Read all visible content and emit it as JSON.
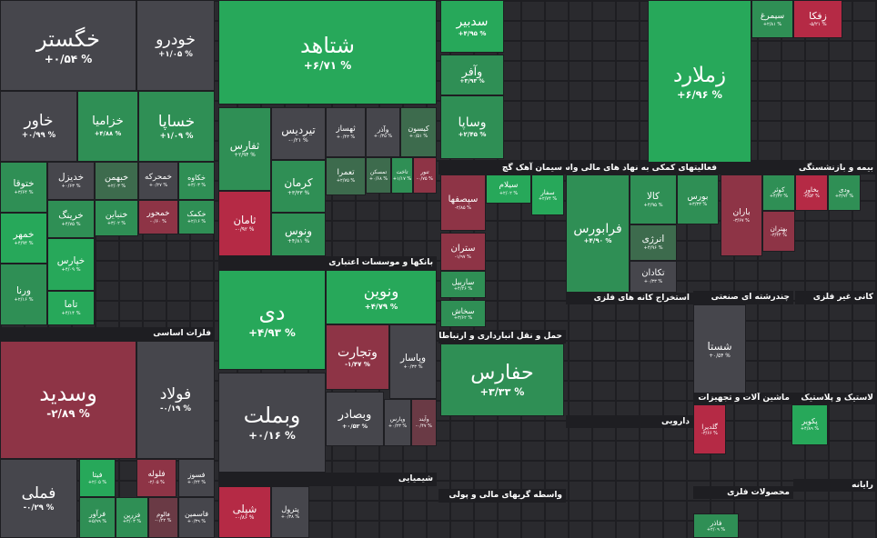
{
  "tiles": [
    {
      "name": "خگستر",
      "change": "+۰/۵۴ %"
    },
    {
      "name": "خودرو",
      "change": "+۱/۰۵ %"
    },
    {
      "name": "خاور",
      "change": "+۰/۹۹ %"
    },
    {
      "name": "خزامیا",
      "change": "+۴/۸۸ %"
    },
    {
      "name": "خساپا",
      "change": "+۱/۰۹ %"
    },
    {
      "name": "ختوقا",
      "change": "+۳/۶۴ %"
    },
    {
      "name": "خمهر",
      "change": "+۴/۹۴ %"
    },
    {
      "name": "ورنا",
      "change": "+۲/۱۶ %"
    },
    {
      "name": "خدیزل",
      "change": "+۰/۶۳ %"
    },
    {
      "name": "خبهمن",
      "change": "+۲/۰۳ %"
    },
    {
      "name": "خمحرکه",
      "change": "+۰/۲۷ %"
    },
    {
      "name": "خکاوه",
      "change": "+۳/۰۳ %"
    },
    {
      "name": "خرینگ",
      "change": "+۴/۷۵ %"
    },
    {
      "name": "خنباین",
      "change": "+۳/۰۲ %"
    },
    {
      "name": "خمحور",
      "change": "-۰/۶۰ %"
    },
    {
      "name": "خکمک",
      "change": "+۲/۱۶ %"
    },
    {
      "name": "خپارس",
      "change": "+۴/۰۹ %"
    },
    {
      "name": "تاما",
      "change": "+۴/۱۴ %"
    },
    {
      "name": "وسدید",
      "change": "-۲/۸۹ %"
    },
    {
      "name": "فولاد",
      "change": "-۰/۱۹ %"
    },
    {
      "name": "فملی",
      "change": "-۰/۲۹ %"
    },
    {
      "name": "فیتا",
      "change": "+۲/۰۵ %"
    },
    {
      "name": "فلوله",
      "change": "-۲/۰۵ %"
    },
    {
      "name": "فسوز",
      "change": "+۰/۲۴ %"
    },
    {
      "name": "فزرین",
      "change": "+۳/۰۳ %"
    },
    {
      "name": "فاسمین",
      "change": "+۰/۳۹ %"
    },
    {
      "name": "فالوم",
      "change": "-۰/۲۲ %"
    },
    {
      "name": "فرآور",
      "change": "+۵/۹۹ %"
    },
    {
      "name": "شتاهد",
      "change": "+۶/۷۱ %"
    },
    {
      "name": "ثفارس",
      "change": "+۲/۹۴ %"
    },
    {
      "name": "ثامان",
      "change": "-۰/۹۲ %"
    },
    {
      "name": "تیردیس",
      "change": "-۰/۲۱ %"
    },
    {
      "name": "ثهساز",
      "change": "+۰/۴۳ %"
    },
    {
      "name": "وآذر",
      "change": "+۰/۳۵ %"
    },
    {
      "name": "کیسون",
      "change": "+۰/۵۱ %"
    },
    {
      "name": "کرمان",
      "change": "+۳/۳۳ %"
    },
    {
      "name": "ونوس",
      "change": "+۴/۸۱ %"
    },
    {
      "name": "تعمرا",
      "change": "+۲/۷۵ %"
    },
    {
      "name": "تمسکن",
      "change": "+۰/۶۸ %"
    },
    {
      "name": "تاخت",
      "change": "+۱/۱۷ %"
    },
    {
      "name": "تنور",
      "change": "-۰/۷۵ %"
    },
    {
      "name": "دی",
      "change": "+۴/۹۳ %"
    },
    {
      "name": "ونوین",
      "change": "+۴/۷۹ %"
    },
    {
      "name": "وتجارت",
      "change": "-۱/۴۷ %"
    },
    {
      "name": "وپاسار",
      "change": "+۰/۳۳ %"
    },
    {
      "name": "وبملت",
      "change": "+۰/۱۶ %"
    },
    {
      "name": "وبصادر",
      "change": "+۰/۵۲ %"
    },
    {
      "name": "وپارس",
      "change": "+۰/۲۳ %"
    },
    {
      "name": "وآیند",
      "change": "-۰/۴۷ %"
    },
    {
      "name": "شپلی",
      "change": "-۰/۸۶ %"
    },
    {
      "name": "پترول",
      "change": "+۰/۳۸ %"
    },
    {
      "name": "سدبیر",
      "change": "+۴/۹۵ %"
    },
    {
      "name": "وآفر",
      "change": "+۳/۹۳ %"
    },
    {
      "name": "وساپا",
      "change": "+۲/۴۵ %"
    },
    {
      "name": "حفارس",
      "change": "+۳/۳۳ %"
    },
    {
      "name": "سپصفها",
      "change": "-۲/۸۵ %"
    },
    {
      "name": "سیلام",
      "change": "+۲/۰۲ %"
    },
    {
      "name": "سفار",
      "change": "+۲/۷۴ %"
    },
    {
      "name": "ستران",
      "change": "-۱/۹۷ %"
    },
    {
      "name": "ساربیل",
      "change": "+۴/۲۶ %"
    },
    {
      "name": "سخاش",
      "change": "+۳/۶۲ %"
    },
    {
      "name": "زملارد",
      "change": "+۶/۹۶ %"
    },
    {
      "name": "فرابورس",
      "change": "+۴/۹۰ %"
    },
    {
      "name": "کالا",
      "change": "+۴/۹۵ %"
    },
    {
      "name": "بورس",
      "change": "+۳/۳۳ %"
    },
    {
      "name": "انرژی",
      "change": "+۴/۹۶ %"
    },
    {
      "name": "تکادان",
      "change": "+۰/۳۳ %"
    },
    {
      "name": "شستا",
      "change": "+۰/۵۴ %"
    },
    {
      "name": "باران",
      "change": "-۳/۶۷ %"
    },
    {
      "name": "کوثر",
      "change": "+۴/۳۲ %"
    },
    {
      "name": "بخاور",
      "change": "-۳/۵۴ %"
    },
    {
      "name": "ودی",
      "change": "+۳/۹۴ %"
    },
    {
      "name": "بهتران",
      "change": "-۳/۴۴ %"
    },
    {
      "name": "سیمرغ",
      "change": "+۲/۸۱ %"
    },
    {
      "name": "زفکا",
      "change": "-۵/۲۱ %"
    },
    {
      "name": "گلدیرا",
      "change": "-۳/۶۶ %"
    },
    {
      "name": "پکویر",
      "change": "+۴/۸۹ %"
    },
    {
      "name": "فاذر",
      "change": "+۲/۰۹ %"
    }
  ],
  "sections": [
    "فلزات اساسی",
    "بانکها و موسسات اعتباری",
    "شیمیایی",
    "سیمان آهک گچ",
    "حمل و نقل انبارداری و ارتباطات",
    "واسطه گریهای مالی و پولی",
    "فعالیتهای کمکی به نهاد های مالی واسط",
    "بیمه و بازنشستگی",
    "استخراج کانه های فلزی",
    "چندرشته ای صنعتی",
    "کانی غیر فلزی",
    "ماشین آلات و تجهیزات",
    "لاستیک و پلاستیک",
    "دارویی",
    "محصولات فلزی",
    "رایانه"
  ]
}
